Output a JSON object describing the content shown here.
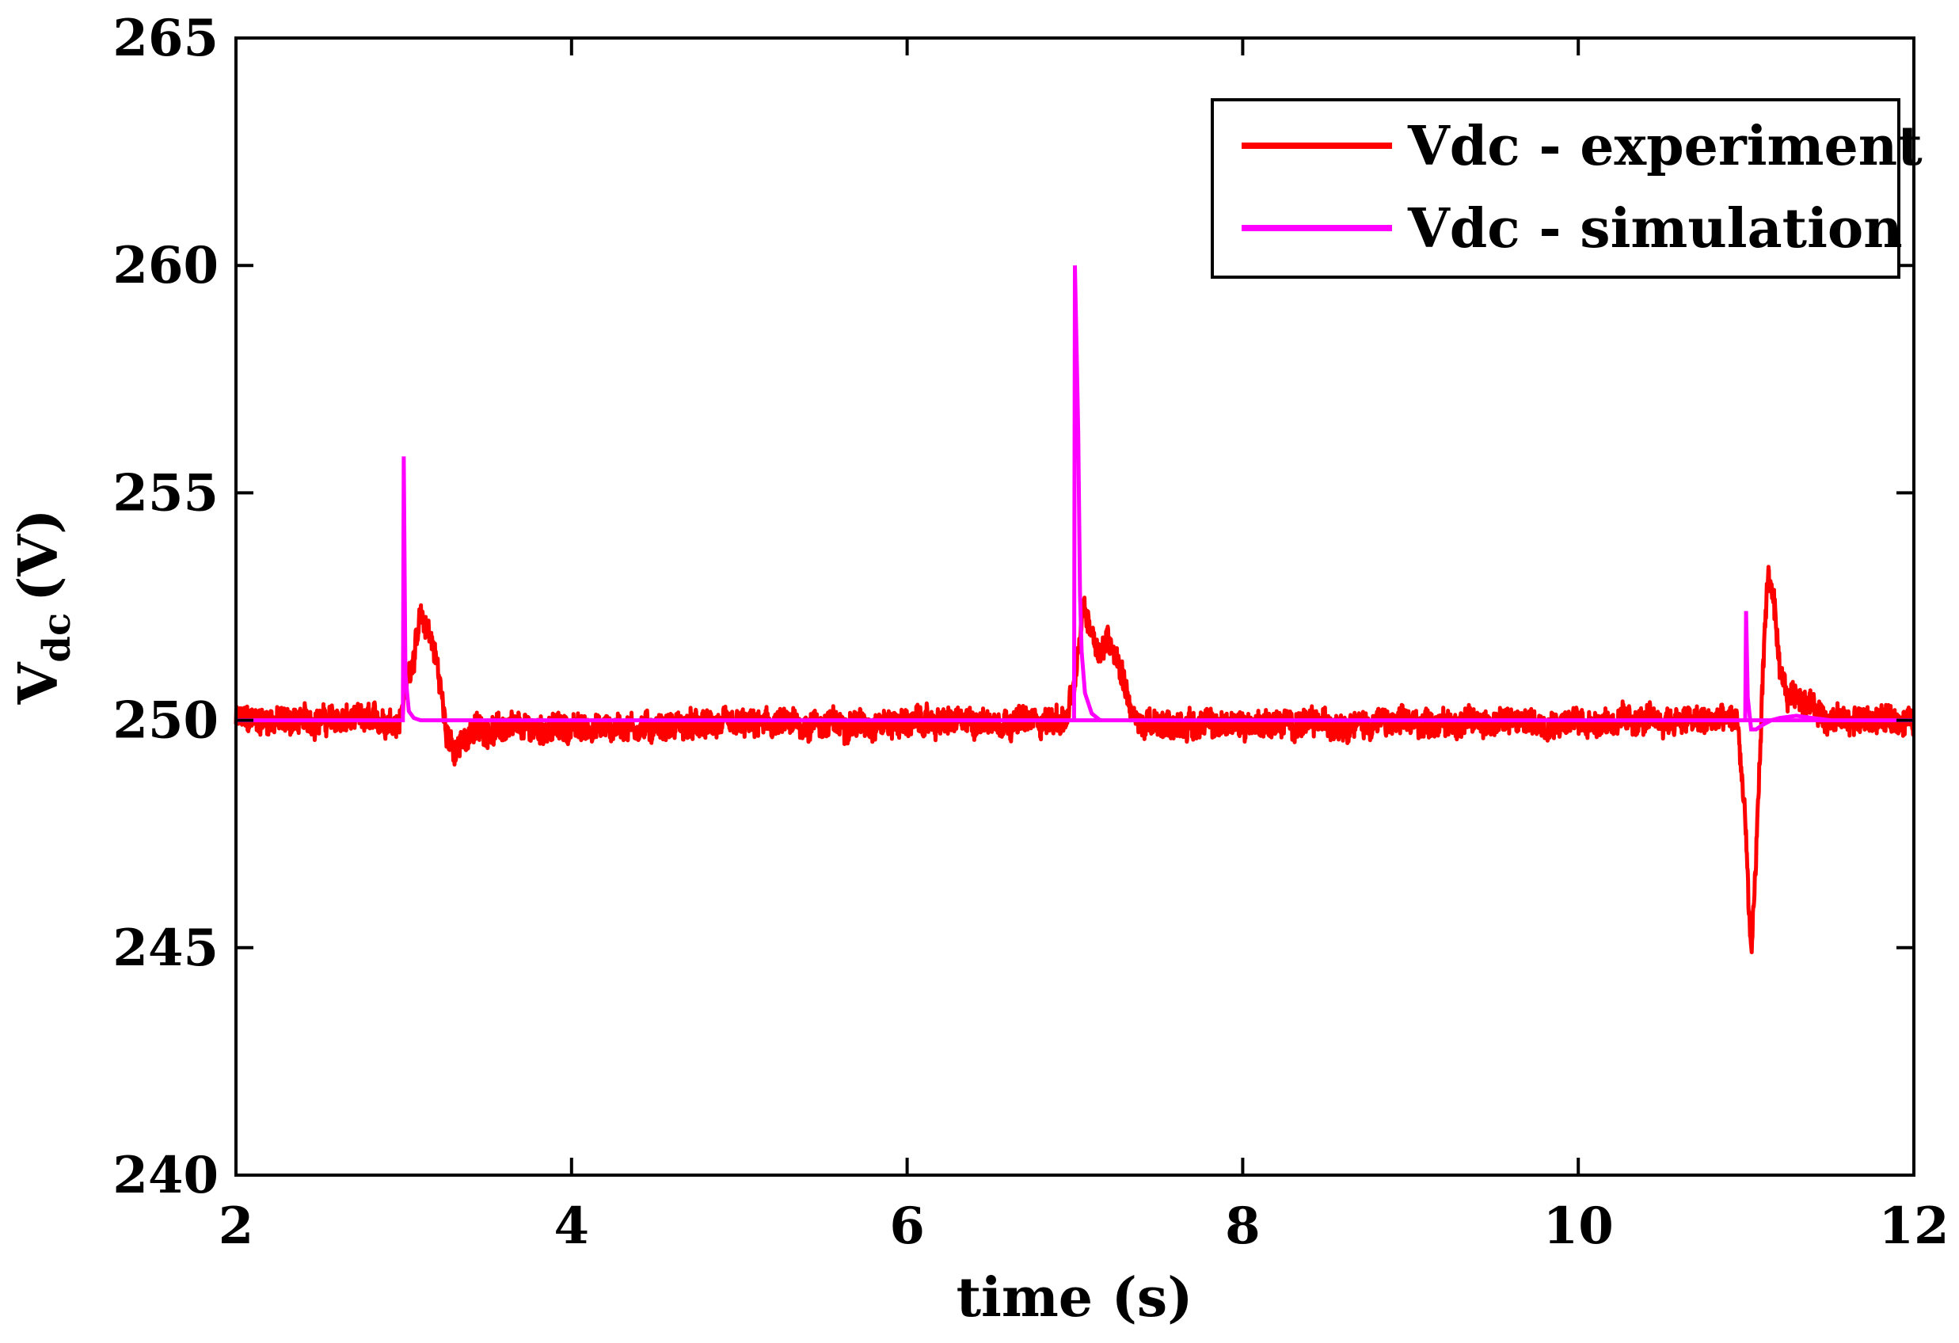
{
  "chart_data": {
    "type": "line",
    "title": "",
    "xlabel": "time (s)",
    "ylabel_main": "V",
    "ylabel_sub": "dc",
    "ylabel_unit": "(V)",
    "xlim": [
      2,
      12
    ],
    "ylim": [
      240,
      265
    ],
    "xticks": [
      2,
      4,
      6,
      8,
      10,
      12
    ],
    "yticks": [
      240,
      245,
      250,
      255,
      260,
      265
    ],
    "grid": false,
    "legend_position": "top-right",
    "series": [
      {
        "name": "Vdc - experiment",
        "color": "#ff0000",
        "baseline": 250,
        "noise_amplitude": 0.45,
        "x": [
          2.0,
          2.98,
          3.0,
          3.05,
          3.1,
          3.15,
          3.2,
          3.25,
          3.3,
          3.4,
          6.95,
          7.0,
          7.05,
          7.1,
          7.15,
          7.2,
          7.25,
          7.3,
          7.35,
          7.4,
          10.95,
          11.0,
          11.03,
          11.06,
          11.1,
          11.13,
          11.16,
          11.2,
          11.25,
          11.3,
          11.5,
          12.0
        ],
        "y": [
          250.0,
          250.0,
          250.6,
          251.3,
          252.2,
          252.0,
          251.2,
          249.9,
          249.2,
          249.8,
          250.0,
          250.8,
          252.5,
          252.0,
          251.5,
          251.8,
          251.4,
          250.8,
          250.0,
          249.9,
          250.0,
          247.5,
          244.7,
          247.0,
          251.0,
          253.2,
          252.8,
          251.0,
          250.5,
          250.6,
          250.0,
          250.0
        ]
      },
      {
        "name": "Vdc - simulation",
        "color": "#ff00ff",
        "x": [
          2.0,
          2.995,
          3.0,
          3.01,
          3.03,
          3.06,
          3.1,
          12.0
        ],
        "y": [
          250.0,
          250.0,
          255.8,
          251.0,
          250.2,
          250.05,
          250.0,
          250.0
        ],
        "x2": [
          6.995,
          7.0,
          7.02,
          7.03,
          7.04,
          7.06,
          7.1,
          7.15
        ],
        "y2": [
          250.0,
          260.0,
          256.3,
          252.8,
          251.5,
          250.6,
          250.15,
          250.0
        ],
        "x3": [
          10.995,
          11.0,
          11.01,
          11.03,
          11.06,
          11.1,
          11.15,
          11.2,
          11.3,
          11.5
        ],
        "y3": [
          250.0,
          252.4,
          250.5,
          249.8,
          249.8,
          249.9,
          250.0,
          250.05,
          250.1,
          250.0
        ]
      }
    ]
  }
}
